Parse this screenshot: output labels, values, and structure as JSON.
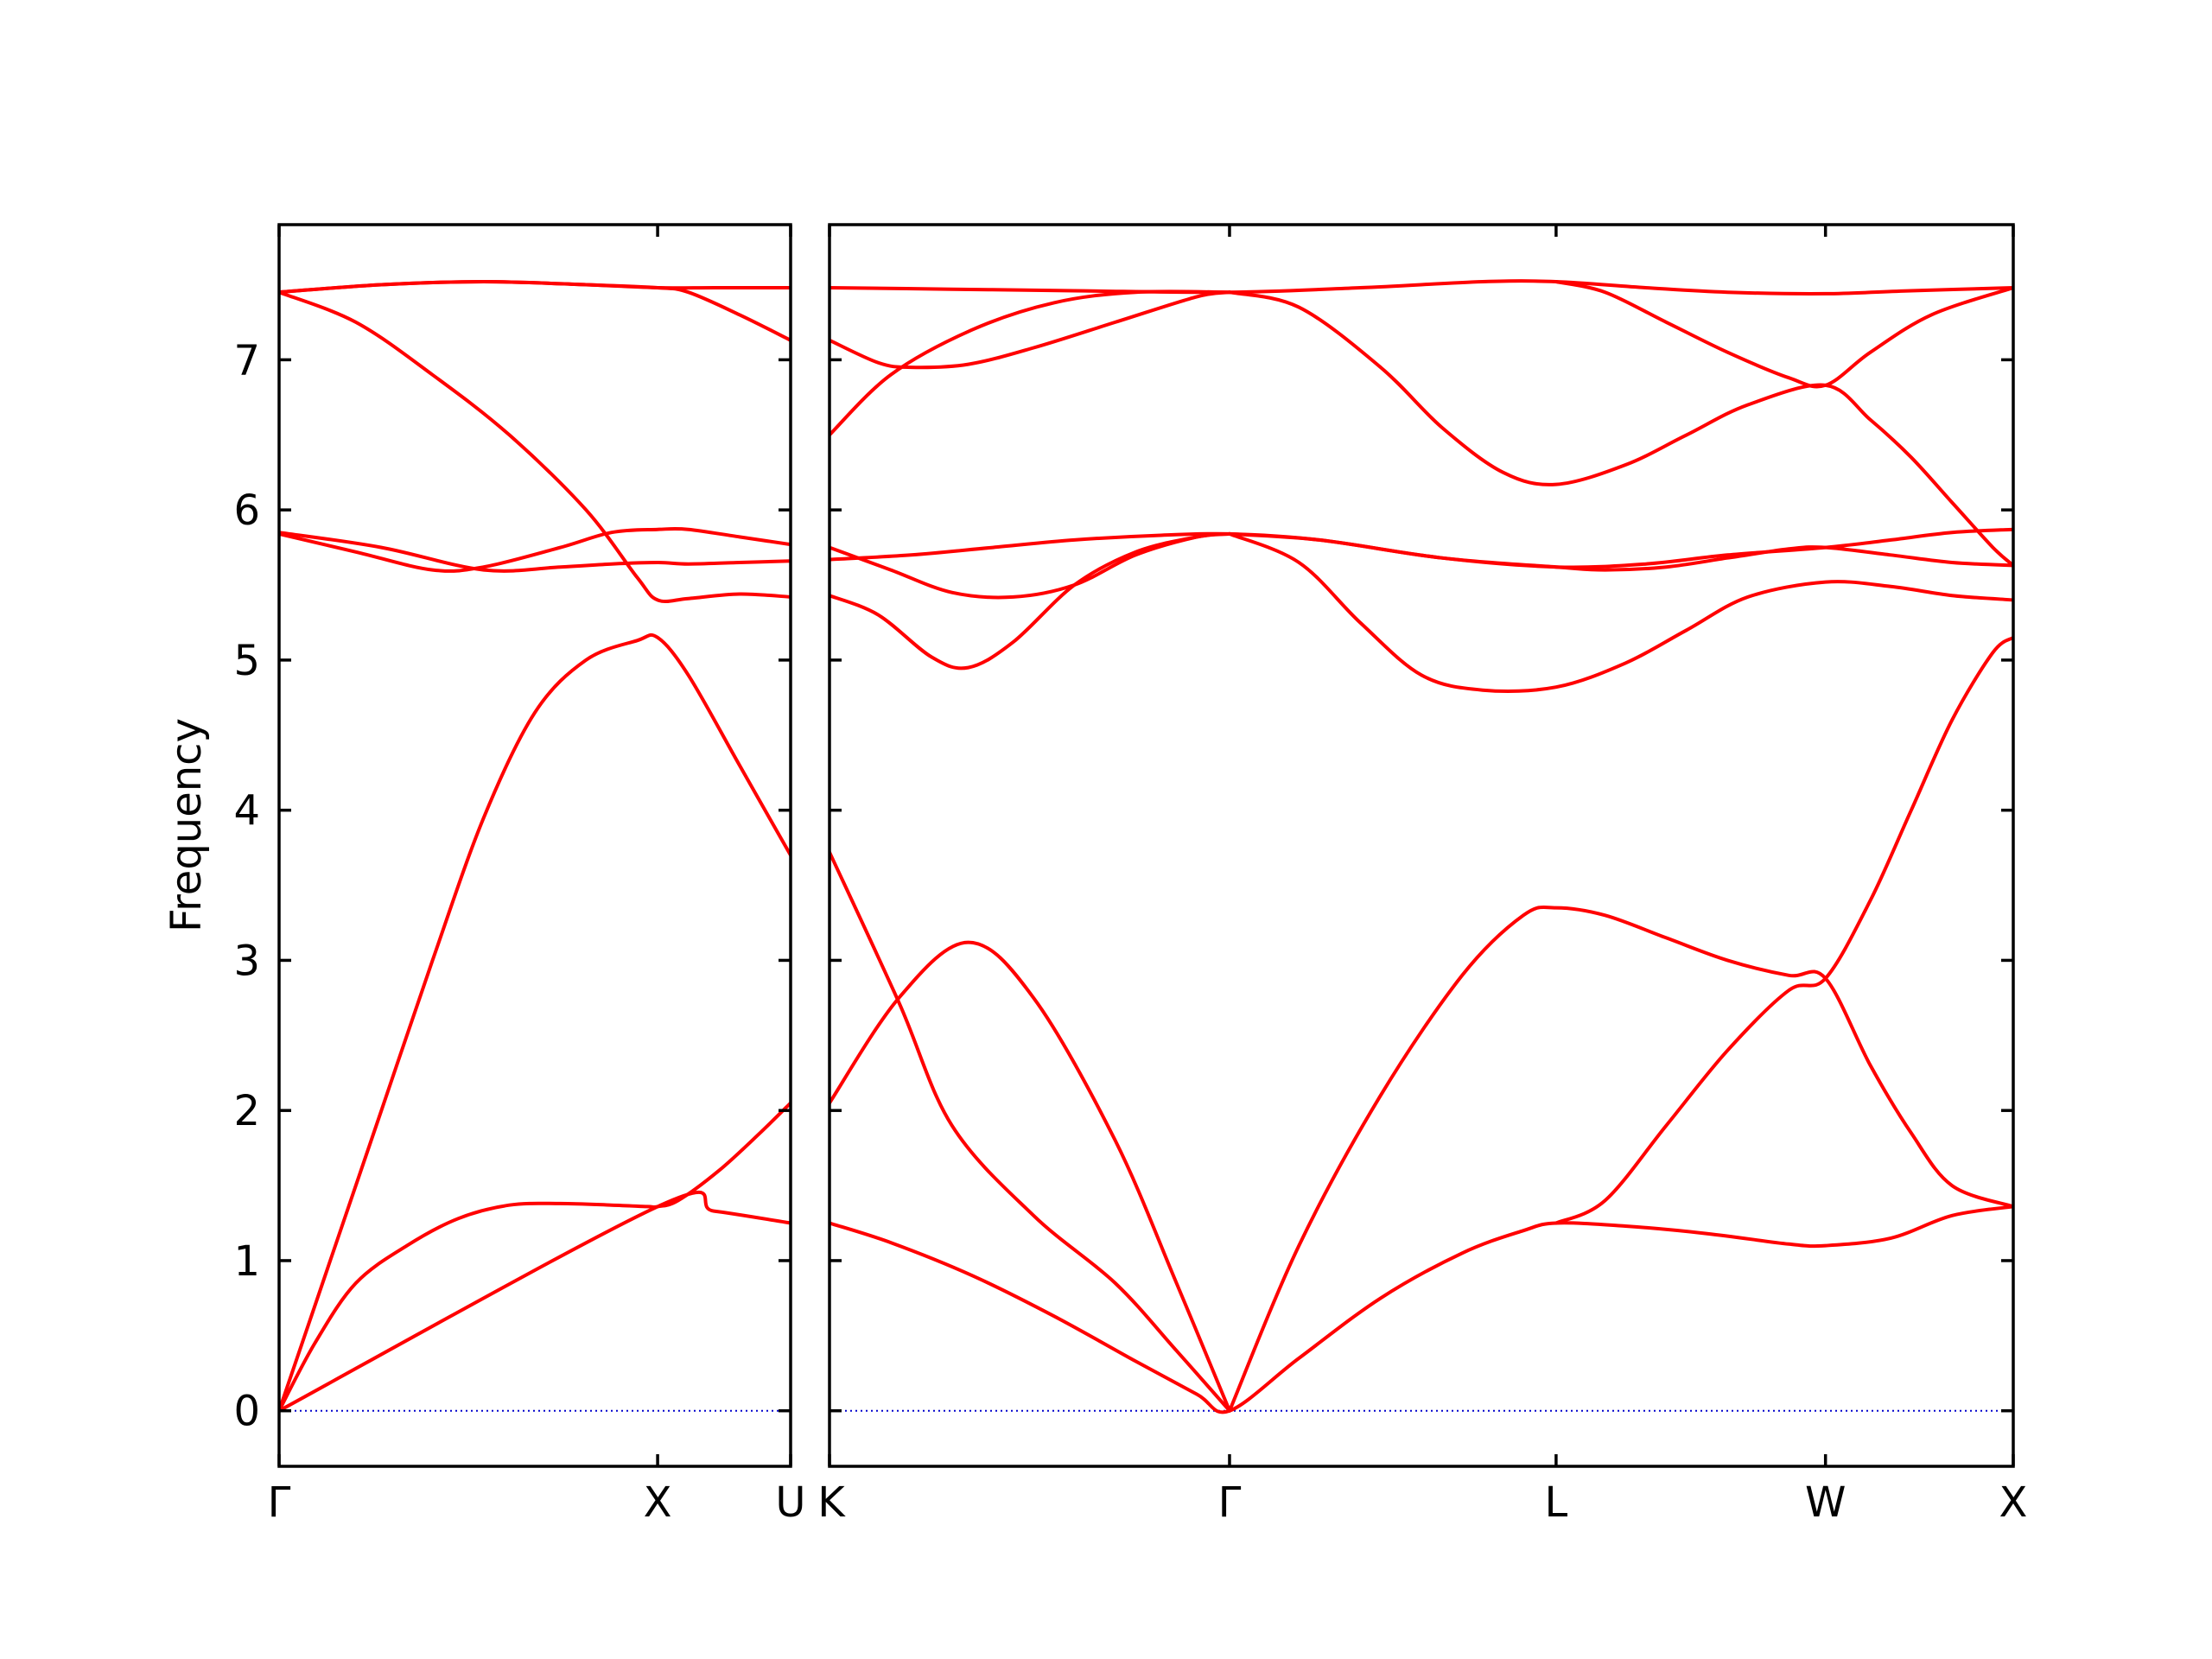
{
  "chart_data": {
    "type": "line",
    "ylabel": "Frequency",
    "ylim": [
      -0.37,
      7.9
    ],
    "yticks": [
      0,
      1,
      2,
      3,
      4,
      5,
      6,
      7
    ],
    "band_color": "#ff0000",
    "zero_line_color": "#0000cc",
    "panels": [
      {
        "xlim": [
          0,
          1.0
        ],
        "xticks": [
          {
            "x": 0,
            "label": "Γ"
          },
          {
            "x": 0.74,
            "label": "X"
          },
          {
            "x": 1.0,
            "label": "U"
          }
        ],
        "series": [
          {
            "x": [
              0,
              0.07,
              0.15,
              0.25,
              0.35,
              0.45,
              0.55,
              0.65,
              0.72,
              0.74,
              0.78,
              0.86,
              0.94,
              1.0
            ],
            "y": [
              0,
              0.45,
              0.85,
              1.1,
              1.28,
              1.37,
              1.38,
              1.37,
              1.36,
              1.36,
              1.4,
              1.6,
              1.85,
              2.05
            ]
          },
          {
            "x": [
              0,
              0.74,
              0.85,
              1.0
            ],
            "y": [
              0,
              1.36,
              1.33,
              1.25
            ]
          },
          {
            "x": [
              0,
              0.1,
              0.2,
              0.3,
              0.4,
              0.5,
              0.6,
              0.7,
              0.74,
              0.8,
              0.9,
              1.0
            ],
            "y": [
              0,
              1.0,
              2.0,
              3.0,
              3.95,
              4.65,
              5.0,
              5.13,
              5.15,
              4.9,
              4.3,
              3.7
            ]
          },
          {
            "x": [
              0,
              0.2,
              0.4,
              0.55,
              0.65,
              0.74,
              0.8,
              0.9,
              1.0
            ],
            "y": [
              5.85,
              5.75,
              5.6,
              5.62,
              5.64,
              5.65,
              5.64,
              5.65,
              5.66
            ]
          },
          {
            "x": [
              0,
              0.15,
              0.3,
              0.4,
              0.55,
              0.65,
              0.74,
              0.8,
              0.9,
              1.0
            ],
            "y": [
              5.84,
              5.72,
              5.6,
              5.62,
              5.75,
              5.85,
              5.87,
              5.87,
              5.82,
              5.77
            ]
          },
          {
            "x": [
              0,
              0.15,
              0.3,
              0.45,
              0.6,
              0.7,
              0.74,
              0.8,
              0.9,
              1.0
            ],
            "y": [
              7.45,
              7.25,
              6.9,
              6.5,
              6.0,
              5.55,
              5.4,
              5.41,
              5.44,
              5.42
            ]
          },
          {
            "x": [
              0,
              0.2,
              0.4,
              0.6,
              0.74,
              0.8,
              0.9,
              1.0
            ],
            "y": [
              7.45,
              7.5,
              7.52,
              7.5,
              7.48,
              7.45,
              7.3,
              7.13
            ]
          },
          {
            "x": [
              0,
              0.2,
              0.4,
              0.6,
              0.74,
              0.85,
              1.0
            ],
            "y": [
              7.45,
              7.5,
              7.52,
              7.5,
              7.48,
              7.48,
              7.48
            ]
          }
        ]
      },
      {
        "xlim": [
          0,
          2.9
        ],
        "xticks": [
          {
            "x": 0,
            "label": "K"
          },
          {
            "x": 0.98,
            "label": "Γ"
          },
          {
            "x": 1.78,
            "label": "L"
          },
          {
            "x": 2.44,
            "label": "W"
          },
          {
            "x": 2.9,
            "label": "X"
          }
        ],
        "series": [
          {
            "x": [
              0,
              0.15,
              0.35,
              0.55,
              0.75,
              0.9,
              0.98,
              1.15,
              1.35,
              1.55,
              1.7,
              1.78,
              1.95,
              2.15,
              2.35,
              2.44,
              2.6,
              2.75,
              2.9
            ],
            "y": [
              1.25,
              1.12,
              0.9,
              0.63,
              0.33,
              0.11,
              0,
              0.35,
              0.75,
              1.05,
              1.2,
              1.25,
              1.23,
              1.18,
              1.11,
              1.1,
              1.15,
              1.3,
              1.36
            ]
          },
          {
            "x": [
              0,
              0.17,
              0.3,
              0.5,
              0.7,
              0.85,
              0.98
            ],
            "y": [
              3.72,
              2.72,
              1.9,
              1.3,
              0.85,
              0.4,
              0
            ]
          },
          {
            "x": [
              0,
              0.17,
              0.34,
              0.5,
              0.7,
              0.85,
              0.98
            ],
            "y": [
              2.05,
              2.75,
              3.12,
              2.75,
              1.8,
              0.85,
              0
            ]
          },
          {
            "x": [
              0.98,
              1.15,
              1.35,
              1.55,
              1.7,
              1.78,
              1.9,
              2.05,
              2.2,
              2.35,
              2.44,
              2.55,
              2.65,
              2.75,
              2.9
            ],
            "y": [
              0,
              1.1,
              2.1,
              2.9,
              3.3,
              3.35,
              3.3,
              3.15,
              3.0,
              2.9,
              2.88,
              2.3,
              1.85,
              1.5,
              1.36
            ]
          },
          {
            "x": [
              1.78,
              1.9,
              2.05,
              2.2,
              2.35,
              2.44,
              2.55,
              2.65,
              2.75,
              2.85,
              2.9
            ],
            "y": [
              1.25,
              1.4,
              1.9,
              2.4,
              2.8,
              2.88,
              3.4,
              4.0,
              4.6,
              5.05,
              5.15
            ]
          },
          {
            "x": [
              0,
              0.12,
              0.25,
              0.34,
              0.45,
              0.6,
              0.75,
              0.9,
              0.98
            ],
            "y": [
              5.43,
              5.3,
              5.02,
              4.95,
              5.12,
              5.5,
              5.72,
              5.82,
              5.84
            ]
          },
          {
            "x": [
              0,
              0.15,
              0.3,
              0.45,
              0.6,
              0.75,
              0.9,
              0.98
            ],
            "y": [
              5.75,
              5.6,
              5.45,
              5.42,
              5.5,
              5.7,
              5.82,
              5.84
            ]
          },
          {
            "x": [
              0,
              0.2,
              0.4,
              0.6,
              0.8,
              0.98,
              1.2,
              1.5,
              1.78,
              2.0,
              2.2,
              2.44,
              2.6,
              2.75,
              2.9
            ],
            "y": [
              5.67,
              5.7,
              5.75,
              5.8,
              5.83,
              5.84,
              5.8,
              5.68,
              5.62,
              5.64,
              5.7,
              5.75,
              5.8,
              5.85,
              5.87
            ]
          },
          {
            "x": [
              0.98,
              1.15,
              1.3,
              1.45,
              1.6,
              1.78,
              1.95,
              2.1,
              2.25,
              2.44,
              2.6,
              2.75,
              2.9
            ],
            "y": [
              5.84,
              5.65,
              5.25,
              4.9,
              4.8,
              4.82,
              4.98,
              5.2,
              5.42,
              5.52,
              5.49,
              5.43,
              5.4
            ]
          },
          {
            "x": [
              0.98,
              1.2,
              1.5,
              1.78,
              1.9,
              2.05,
              2.2,
              2.35,
              2.44,
              2.6,
              2.75,
              2.9
            ],
            "y": [
              5.84,
              5.8,
              5.68,
              5.62,
              5.6,
              5.62,
              5.68,
              5.74,
              5.75,
              5.7,
              5.65,
              5.63
            ]
          },
          {
            "x": [
              0,
              0.15,
              0.35,
              0.55,
              0.75,
              0.98
            ],
            "y": [
              6.5,
              6.9,
              7.2,
              7.38,
              7.45,
              7.45
            ]
          },
          {
            "x": [
              0,
              0.12,
              0.2,
              0.34,
              0.5,
              0.7,
              0.9,
              0.98
            ],
            "y": [
              7.13,
              6.98,
              6.95,
              6.97,
              7.08,
              7.25,
              7.42,
              7.45
            ]
          },
          {
            "x": [
              0.98,
              1.15,
              1.35,
              1.5,
              1.65,
              1.78,
              1.95,
              2.1,
              2.25,
              2.44,
              2.55,
              2.65,
              2.75,
              2.85,
              2.9
            ],
            "y": [
              7.45,
              7.35,
              6.95,
              6.55,
              6.25,
              6.17,
              6.3,
              6.5,
              6.7,
              6.83,
              6.6,
              6.35,
              6.05,
              5.75,
              5.63
            ]
          },
          {
            "x": [
              1.78,
              1.9,
              2.05,
              2.2,
              2.35,
              2.44,
              2.55,
              2.7,
              2.9
            ],
            "y": [
              7.52,
              7.45,
              7.25,
              7.05,
              6.88,
              6.83,
              7.05,
              7.3,
              7.48
            ]
          },
          {
            "x": [
              0,
              0.3,
              0.6,
              0.98,
              1.3,
              1.6,
              1.78,
              2.0,
              2.2,
              2.44,
              2.65,
              2.9
            ],
            "y": [
              7.48,
              7.47,
              7.46,
              7.45,
              7.48,
              7.52,
              7.52,
              7.48,
              7.45,
              7.44,
              7.46,
              7.48
            ]
          }
        ]
      }
    ]
  }
}
